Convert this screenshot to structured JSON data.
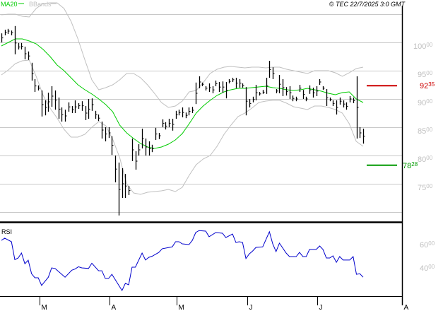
{
  "header": {
    "legend": [
      {
        "label": "MA20",
        "color": "#00cc00"
      },
      {
        "label": "BBands",
        "color": "#c0c0c0"
      }
    ],
    "copyright": "© TEC 22/7/2025 3:0 GMT"
  },
  "chart_data": [
    {
      "type": "ohlc",
      "title": "",
      "y_axis": {
        "ylim": [
          6800,
          10700
        ],
        "ticks": [
          {
            "value": 10000,
            "main": "100",
            "sup": "00"
          },
          {
            "value": 9500,
            "main": "95",
            "sup": "00"
          },
          {
            "value": 9000,
            "main": "90",
            "sup": "00"
          },
          {
            "value": 8500,
            "main": "85",
            "sup": "00"
          },
          {
            "value": 8000,
            "main": "80",
            "sup": "00"
          },
          {
            "value": 7500,
            "main": "75",
            "sup": "00"
          }
        ],
        "gridlines": [
          10500,
          10000,
          9500,
          9000,
          8500,
          8000,
          7500,
          7000
        ],
        "grid": true
      },
      "bars_hlc": [
        [
          10160,
          10000,
          10080
        ],
        [
          10225,
          10125,
          10180
        ],
        [
          10240,
          10150,
          10200
        ],
        [
          10210,
          10125,
          10170
        ],
        [
          10290,
          9790,
          9990
        ],
        [
          9990,
          9875,
          9920
        ],
        [
          9990,
          9875,
          9930
        ],
        [
          9925,
          9700,
          9800
        ],
        [
          9840,
          9690,
          9760
        ],
        [
          9640,
          9325,
          9450
        ],
        [
          9350,
          9125,
          9230
        ],
        [
          9240,
          9150,
          9190
        ],
        [
          9150,
          8690,
          8900
        ],
        [
          8975,
          8710,
          8850
        ],
        [
          9110,
          8775,
          8950
        ],
        [
          9225,
          8860,
          9050
        ],
        [
          9150,
          8810,
          8980
        ],
        [
          9025,
          8650,
          8820
        ],
        [
          8850,
          8600,
          8720
        ],
        [
          8810,
          8600,
          8700
        ],
        [
          8940,
          8775,
          8860
        ],
        [
          8875,
          8750,
          8810
        ],
        [
          8975,
          8750,
          8860
        ],
        [
          8925,
          8825,
          8880
        ],
        [
          8960,
          8790,
          8880
        ],
        [
          8875,
          8625,
          8750
        ],
        [
          9000,
          8650,
          8820
        ],
        [
          9010,
          8790,
          8900
        ],
        [
          8790,
          8650,
          8720
        ],
        [
          8725,
          8610,
          8660
        ],
        [
          8600,
          8300,
          8450
        ],
        [
          8500,
          8250,
          8380
        ],
        [
          8500,
          8310,
          8400
        ],
        [
          8340,
          8010,
          8180
        ],
        [
          8000,
          7525,
          7760
        ],
        [
          7875,
          6940,
          7400
        ],
        [
          7775,
          7250,
          7500
        ],
        [
          7675,
          7250,
          7460
        ],
        [
          7460,
          7300,
          7380
        ],
        [
          8300,
          7900,
          8100
        ],
        [
          8075,
          7750,
          7900
        ],
        [
          8200,
          8000,
          8100
        ],
        [
          8475,
          8125,
          8300
        ],
        [
          8300,
          8000,
          8150
        ],
        [
          8250,
          8000,
          8120
        ],
        [
          8190,
          8060,
          8120
        ],
        [
          8490,
          8275,
          8380
        ],
        [
          8400,
          8290,
          8350
        ],
        [
          8640,
          8500,
          8570
        ],
        [
          8590,
          8460,
          8520
        ],
        [
          8650,
          8500,
          8570
        ],
        [
          8650,
          8440,
          8550
        ],
        [
          8790,
          8650,
          8720
        ],
        [
          8810,
          8710,
          8760
        ],
        [
          8850,
          8675,
          8760
        ],
        [
          8760,
          8660,
          8710
        ],
        [
          8850,
          8710,
          8780
        ],
        [
          8860,
          8750,
          8800
        ],
        [
          9290,
          8910,
          9100
        ],
        [
          9400,
          9190,
          9300
        ],
        [
          9290,
          9225,
          9260
        ],
        [
          9225,
          9150,
          9190
        ],
        [
          9275,
          9125,
          9200
        ],
        [
          9225,
          9100,
          9160
        ],
        [
          9325,
          9225,
          9270
        ],
        [
          9300,
          9125,
          9210
        ],
        [
          9310,
          9110,
          9210
        ],
        [
          9300,
          9010,
          9150
        ],
        [
          9350,
          9275,
          9310
        ],
        [
          9375,
          9300,
          9340
        ],
        [
          9375,
          9190,
          9280
        ],
        [
          9350,
          9200,
          9280
        ],
        [
          9275,
          9200,
          9240
        ],
        [
          9210,
          8710,
          8960
        ],
        [
          9000,
          8850,
          8920
        ],
        [
          9040,
          8940,
          8990
        ],
        [
          9250,
          8975,
          9110
        ],
        [
          9125,
          9060,
          9090
        ],
        [
          9160,
          9090,
          9120
        ],
        [
          9375,
          9090,
          9230
        ],
        [
          9675,
          9375,
          9520
        ],
        [
          9560,
          9350,
          9450
        ],
        [
          9175,
          9100,
          9140
        ],
        [
          9425,
          9100,
          9260
        ],
        [
          9350,
          9050,
          9200
        ],
        [
          9210,
          9060,
          9130
        ],
        [
          9225,
          9000,
          9110
        ],
        [
          9060,
          8960,
          9010
        ],
        [
          9040,
          8960,
          9000
        ],
        [
          9250,
          9125,
          9190
        ],
        [
          9160,
          9000,
          9080
        ],
        [
          9040,
          8960,
          9000
        ],
        [
          9240,
          9090,
          9160
        ],
        [
          9200,
          9025,
          9110
        ],
        [
          9225,
          9050,
          9140
        ],
        [
          9350,
          9250,
          9300
        ],
        [
          9225,
          9160,
          9190
        ],
        [
          9175,
          8875,
          9020
        ],
        [
          9025,
          8960,
          8990
        ],
        [
          8975,
          8875,
          8920
        ],
        [
          8975,
          8725,
          8850
        ],
        [
          9025,
          8900,
          8960
        ],
        [
          8975,
          8850,
          8910
        ],
        [
          8940,
          8810,
          8870
        ],
        [
          9050,
          8940,
          9000
        ],
        [
          9025,
          8925,
          8970
        ],
        [
          9400,
          8300,
          8850
        ],
        [
          8500,
          8310,
          8400
        ],
        [
          8475,
          8210,
          8340
        ]
      ],
      "ma20": [
        9938,
        10000,
        10063,
        10063,
        10025,
        9975,
        9875,
        9750,
        9600,
        9500,
        9375,
        9250,
        9163,
        9088,
        9000,
        8900,
        8775,
        8538,
        8400,
        8300,
        8213,
        8150,
        8125,
        8150,
        8200,
        8275,
        8388,
        8563,
        8750,
        8875,
        8975,
        9063,
        9125,
        9163,
        9188,
        9188,
        9200,
        9213,
        9225,
        9200,
        9188,
        9163,
        9150,
        9163,
        9188,
        9163,
        9138,
        9100,
        9075,
        9113,
        9125,
        9000,
        8938
      ],
      "bband_upper": [
        10488,
        10500,
        10500,
        10463,
        10450,
        10600,
        10688,
        10700,
        10700,
        10600,
        10375,
        10063,
        9688,
        9338,
        9163,
        9200,
        9250,
        9338,
        9450,
        9450,
        9375,
        9250,
        9100,
        8938,
        8850,
        8875,
        8963,
        9125,
        9150,
        9288,
        9450,
        9525,
        9563,
        9575,
        9563,
        9550,
        9563,
        9563,
        9550,
        9563,
        9563,
        9525,
        9500,
        9475,
        9450,
        9500,
        9500,
        9500,
        9463,
        9400,
        9463,
        9538,
        9563
      ],
      "bband_lower": [
        9425,
        9513,
        9625,
        9675,
        9688,
        9400,
        9063,
        8838,
        8663,
        8463,
        8325,
        8325,
        8375,
        8500,
        8600,
        8525,
        8288,
        7963,
        7500,
        7338,
        7313,
        7350,
        7363,
        7375,
        7400,
        7363,
        7438,
        7650,
        7838,
        7938,
        8000,
        8163,
        8375,
        8538,
        8688,
        8750,
        8838,
        8938,
        8963,
        8975,
        8975,
        8925,
        8863,
        8838,
        8813,
        8875,
        8875,
        8850,
        8813,
        8750,
        8563,
        8250,
        8163
      ],
      "levels": [
        {
          "value": 9235,
          "main": "92",
          "sup": "35",
          "color": "#cc0000"
        },
        {
          "value": 7828,
          "main": "78",
          "sup": "28",
          "color": "#009900"
        }
      ]
    },
    {
      "type": "line",
      "title": "RSI",
      "series_color": "#0000cc",
      "y_axis": {
        "ticks": [
          {
            "value": 60,
            "main": "60",
            "sup": "00"
          },
          {
            "value": 40,
            "main": "40",
            "sup": "00"
          }
        ]
      },
      "points_bar_rsi": [
        [
          0,
          63.6
        ],
        [
          1,
          65.5
        ],
        [
          3,
          62.4
        ],
        [
          4,
          47
        ],
        [
          5,
          48.5
        ],
        [
          6,
          52.7
        ],
        [
          7,
          43.6
        ],
        [
          8,
          46.6
        ],
        [
          9,
          35
        ],
        [
          10,
          31.5
        ],
        [
          11,
          31.5
        ],
        [
          12,
          25
        ],
        [
          14,
          32
        ],
        [
          15,
          40
        ],
        [
          16,
          39.5
        ],
        [
          19,
          32
        ],
        [
          21,
          38
        ],
        [
          22,
          39
        ],
        [
          23,
          41
        ],
        [
          24,
          40
        ],
        [
          26,
          39.5
        ],
        [
          27,
          44
        ],
        [
          29,
          37.6
        ],
        [
          30,
          37.5
        ],
        [
          31,
          31
        ],
        [
          32,
          31
        ],
        [
          33,
          34.5
        ],
        [
          36,
          20.6
        ],
        [
          37,
          26.7
        ],
        [
          38,
          25.5
        ],
        [
          39,
          40.6
        ],
        [
          40,
          40.6
        ],
        [
          42,
          52.7
        ],
        [
          43,
          46.7
        ],
        [
          44,
          49
        ],
        [
          45,
          50
        ],
        [
          47,
          53.3
        ],
        [
          48,
          56.4
        ],
        [
          51,
          58
        ],
        [
          52,
          62.4
        ],
        [
          53,
          62.4
        ],
        [
          54,
          60.6
        ],
        [
          56,
          60
        ],
        [
          57,
          63.6
        ],
        [
          58,
          70.3
        ],
        [
          59,
          72
        ],
        [
          61,
          71.5
        ],
        [
          62,
          66.7
        ],
        [
          64,
          70.3
        ],
        [
          66,
          69.7
        ],
        [
          67,
          66
        ],
        [
          69,
          69
        ],
        [
          70,
          61.8
        ],
        [
          71,
          62.4
        ],
        [
          72,
          61.8
        ],
        [
          73,
          48
        ],
        [
          74,
          52
        ],
        [
          75,
          54.5
        ],
        [
          76,
          57.6
        ],
        [
          78,
          58
        ],
        [
          80,
          71
        ],
        [
          81,
          60.6
        ],
        [
          82,
          54
        ],
        [
          83,
          61.2
        ],
        [
          85,
          52.7
        ],
        [
          86,
          49.7
        ],
        [
          88,
          49.7
        ],
        [
          89,
          53.3
        ],
        [
          90,
          49.7
        ],
        [
          91,
          49.7
        ],
        [
          92,
          55.8
        ],
        [
          94,
          55.8
        ],
        [
          95,
          58.8
        ],
        [
          96,
          55.8
        ],
        [
          97,
          48.5
        ],
        [
          98,
          48.5
        ],
        [
          99,
          50.3
        ],
        [
          100,
          44.8
        ],
        [
          101,
          49.7
        ],
        [
          102,
          46.7
        ],
        [
          104,
          46.7
        ],
        [
          105,
          49.7
        ],
        [
          106,
          34.5
        ],
        [
          107,
          35
        ],
        [
          108,
          32
        ]
      ]
    }
  ],
  "x_axis": {
    "months": [
      "M",
      "A",
      "M",
      "J",
      "J",
      "A"
    ]
  }
}
